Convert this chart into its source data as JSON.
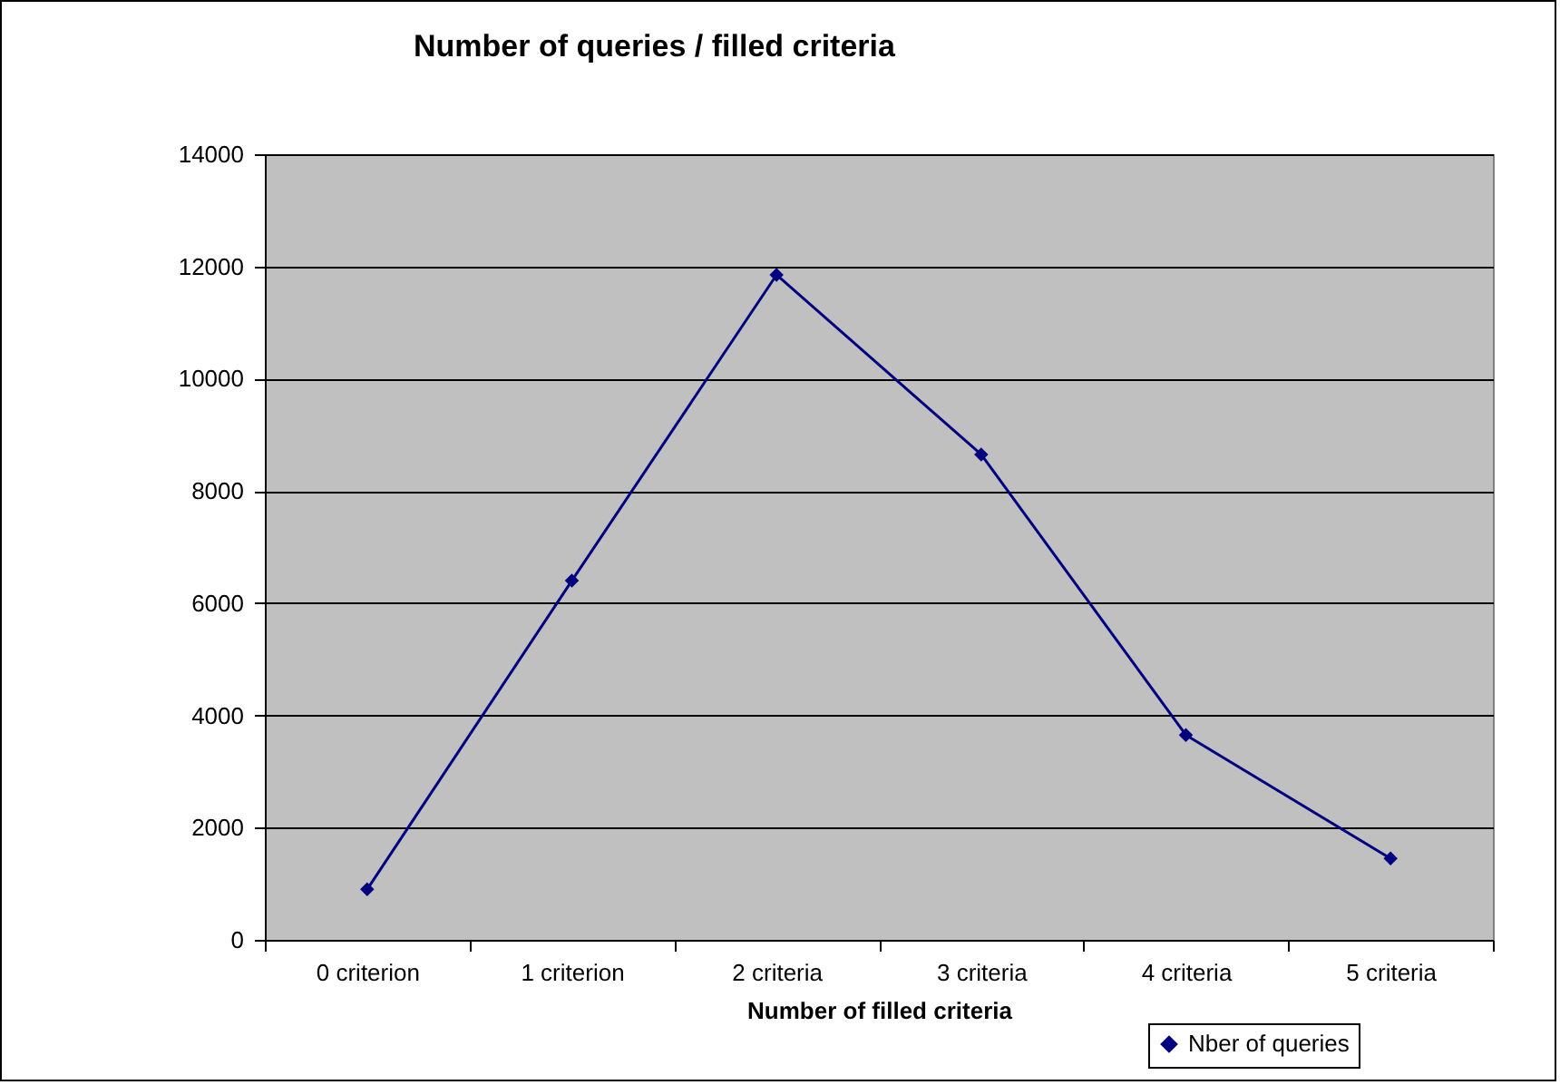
{
  "chart_data": {
    "type": "line",
    "title": "Number of queries / filled criteria",
    "xlabel": "Number of filled criteria",
    "categories": [
      "0 criterion",
      "1 criterion",
      "2 criteria",
      "3 criteria",
      "4 criteria",
      "5 criteria"
    ],
    "series": [
      {
        "name": "Nber of queries",
        "color": "#000080",
        "values": [
          900,
          6400,
          11850,
          8650,
          3650,
          1450
        ]
      }
    ],
    "ylim": [
      0,
      14000
    ],
    "yticks": [
      0,
      2000,
      4000,
      6000,
      8000,
      10000,
      12000,
      14000
    ],
    "grid": "y",
    "legend": "bottom right",
    "marker": "diamond"
  }
}
